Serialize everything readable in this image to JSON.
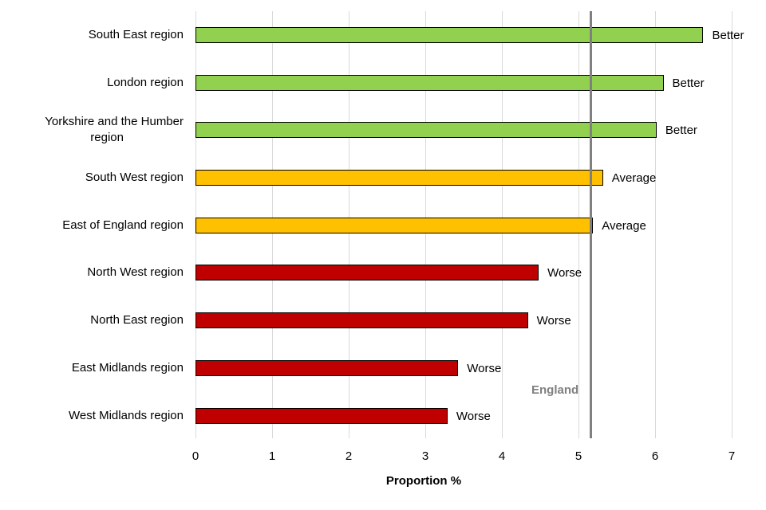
{
  "chart_data": {
    "type": "bar",
    "orientation": "horizontal",
    "title": "",
    "xlabel": "Proportion  %",
    "ylabel": "",
    "xlim": [
      0,
      7
    ],
    "xticks": [
      "0",
      "1",
      "2",
      "3",
      "4",
      "5",
      "6",
      "7"
    ],
    "grid": true,
    "categories": [
      "South East region",
      "London region",
      "Yorkshire and the Humber region",
      "South West region",
      "East of England region",
      "North West region",
      "North East region",
      "East Midlands region",
      "West Midlands region"
    ],
    "values": [
      6.63,
      6.11,
      6.02,
      5.32,
      5.19,
      4.48,
      4.34,
      3.43,
      3.29
    ],
    "comparison": [
      "Better",
      "Better",
      "Better",
      "Average",
      "Average",
      "Worse",
      "Worse",
      "Worse",
      "Worse"
    ],
    "reference_line": {
      "label": "England",
      "value": 5.16,
      "color": "#808080"
    },
    "colors": {
      "Better": "#92d050",
      "Average": "#ffc000",
      "Worse": "#c00000"
    }
  },
  "labels": {
    "cat0_line1": "South East region",
    "cat1_line1": "London region",
    "cat2_line1": "Yorkshire and the Humber",
    "cat2_line2": "region",
    "cat3_line1": "South West region",
    "cat4_line1": "East of England region",
    "cat5_line1": "North West region",
    "cat6_line1": "North East region",
    "cat7_line1": "East Midlands region",
    "cat8_line1": "West Midlands region"
  }
}
